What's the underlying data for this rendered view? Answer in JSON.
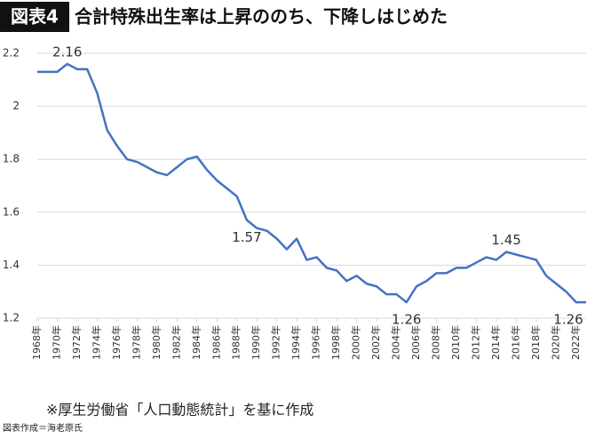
{
  "chart_data": {
    "type": "line",
    "badge": "図表4",
    "title": "合計特殊出生率は上昇ののち、下降しはじめた",
    "note": "※厚生労働省「人口動態統計」を基に作成",
    "source": "図表作成＝海老原氏",
    "x": [
      1968,
      1969,
      1970,
      1971,
      1972,
      1973,
      1974,
      1975,
      1976,
      1977,
      1978,
      1979,
      1980,
      1981,
      1982,
      1983,
      1984,
      1985,
      1986,
      1987,
      1988,
      1989,
      1990,
      1991,
      1992,
      1993,
      1994,
      1995,
      1996,
      1997,
      1998,
      1999,
      2000,
      2001,
      2002,
      2003,
      2004,
      2005,
      2006,
      2007,
      2008,
      2009,
      2010,
      2011,
      2012,
      2013,
      2014,
      2015,
      2016,
      2017,
      2018,
      2019,
      2020,
      2021,
      2022,
      2023
    ],
    "series": [
      {
        "color": "#4472c4",
        "values": [
          2.13,
          2.13,
          2.13,
          2.16,
          2.14,
          2.14,
          2.05,
          1.91,
          1.85,
          1.8,
          1.79,
          1.77,
          1.75,
          1.74,
          1.77,
          1.8,
          1.81,
          1.76,
          1.72,
          1.69,
          1.66,
          1.57,
          1.54,
          1.53,
          1.5,
          1.46,
          1.5,
          1.42,
          1.43,
          1.39,
          1.38,
          1.34,
          1.36,
          1.33,
          1.32,
          1.29,
          1.29,
          1.26,
          1.32,
          1.34,
          1.37,
          1.37,
          1.39,
          1.39,
          1.41,
          1.43,
          1.42,
          1.45,
          1.44,
          1.43,
          1.42,
          1.36,
          1.33,
          1.3,
          1.26,
          1.26
        ],
        "value_labels": [
          null,
          null,
          null,
          "2.16",
          null,
          null,
          null,
          null,
          null,
          null,
          null,
          null,
          null,
          null,
          null,
          null,
          null,
          null,
          null,
          null,
          null,
          "1.57",
          null,
          null,
          null,
          null,
          null,
          null,
          null,
          null,
          null,
          null,
          null,
          null,
          null,
          null,
          null,
          "1.26",
          null,
          null,
          null,
          null,
          null,
          null,
          null,
          null,
          null,
          "1.45",
          null,
          null,
          null,
          null,
          null,
          null,
          "1.26",
          null
        ]
      }
    ],
    "xlim": [
      1968,
      2023
    ],
    "xticks": [
      {
        "value": 1968,
        "label": "1968年"
      },
      {
        "value": 1970,
        "label": "1970年"
      },
      {
        "value": 1972,
        "label": "1972年"
      },
      {
        "value": 1974,
        "label": "1974年"
      },
      {
        "value": 1976,
        "label": "1976年"
      },
      {
        "value": 1978,
        "label": "1978年"
      },
      {
        "value": 1980,
        "label": "1980年"
      },
      {
        "value": 1982,
        "label": "1982年"
      },
      {
        "value": 1984,
        "label": "1984年"
      },
      {
        "value": 1986,
        "label": "1986年"
      },
      {
        "value": 1988,
        "label": "1988年"
      },
      {
        "value": 1990,
        "label": "1990年"
      },
      {
        "value": 1992,
        "label": "1992年"
      },
      {
        "value": 1994,
        "label": "1994年"
      },
      {
        "value": 1996,
        "label": "1996年"
      },
      {
        "value": 1998,
        "label": "1998年"
      },
      {
        "value": 2000,
        "label": "2000年"
      },
      {
        "value": 2002,
        "label": "2002年"
      },
      {
        "value": 2004,
        "label": "2004年"
      },
      {
        "value": 2006,
        "label": "2006年"
      },
      {
        "value": 2008,
        "label": "2008年"
      },
      {
        "value": 2010,
        "label": "2010年"
      },
      {
        "value": 2012,
        "label": "2012年"
      },
      {
        "value": 2014,
        "label": "2014年"
      },
      {
        "value": 2016,
        "label": "2016年"
      },
      {
        "value": 2018,
        "label": "2018年"
      },
      {
        "value": 2020,
        "label": "2020年"
      },
      {
        "value": 2022,
        "label": "2022年"
      }
    ],
    "ylim": [
      1.2,
      2.2
    ],
    "yticks": [
      1.2,
      1.4,
      1.6,
      1.8,
      2,
      2.2
    ],
    "grid": true
  }
}
